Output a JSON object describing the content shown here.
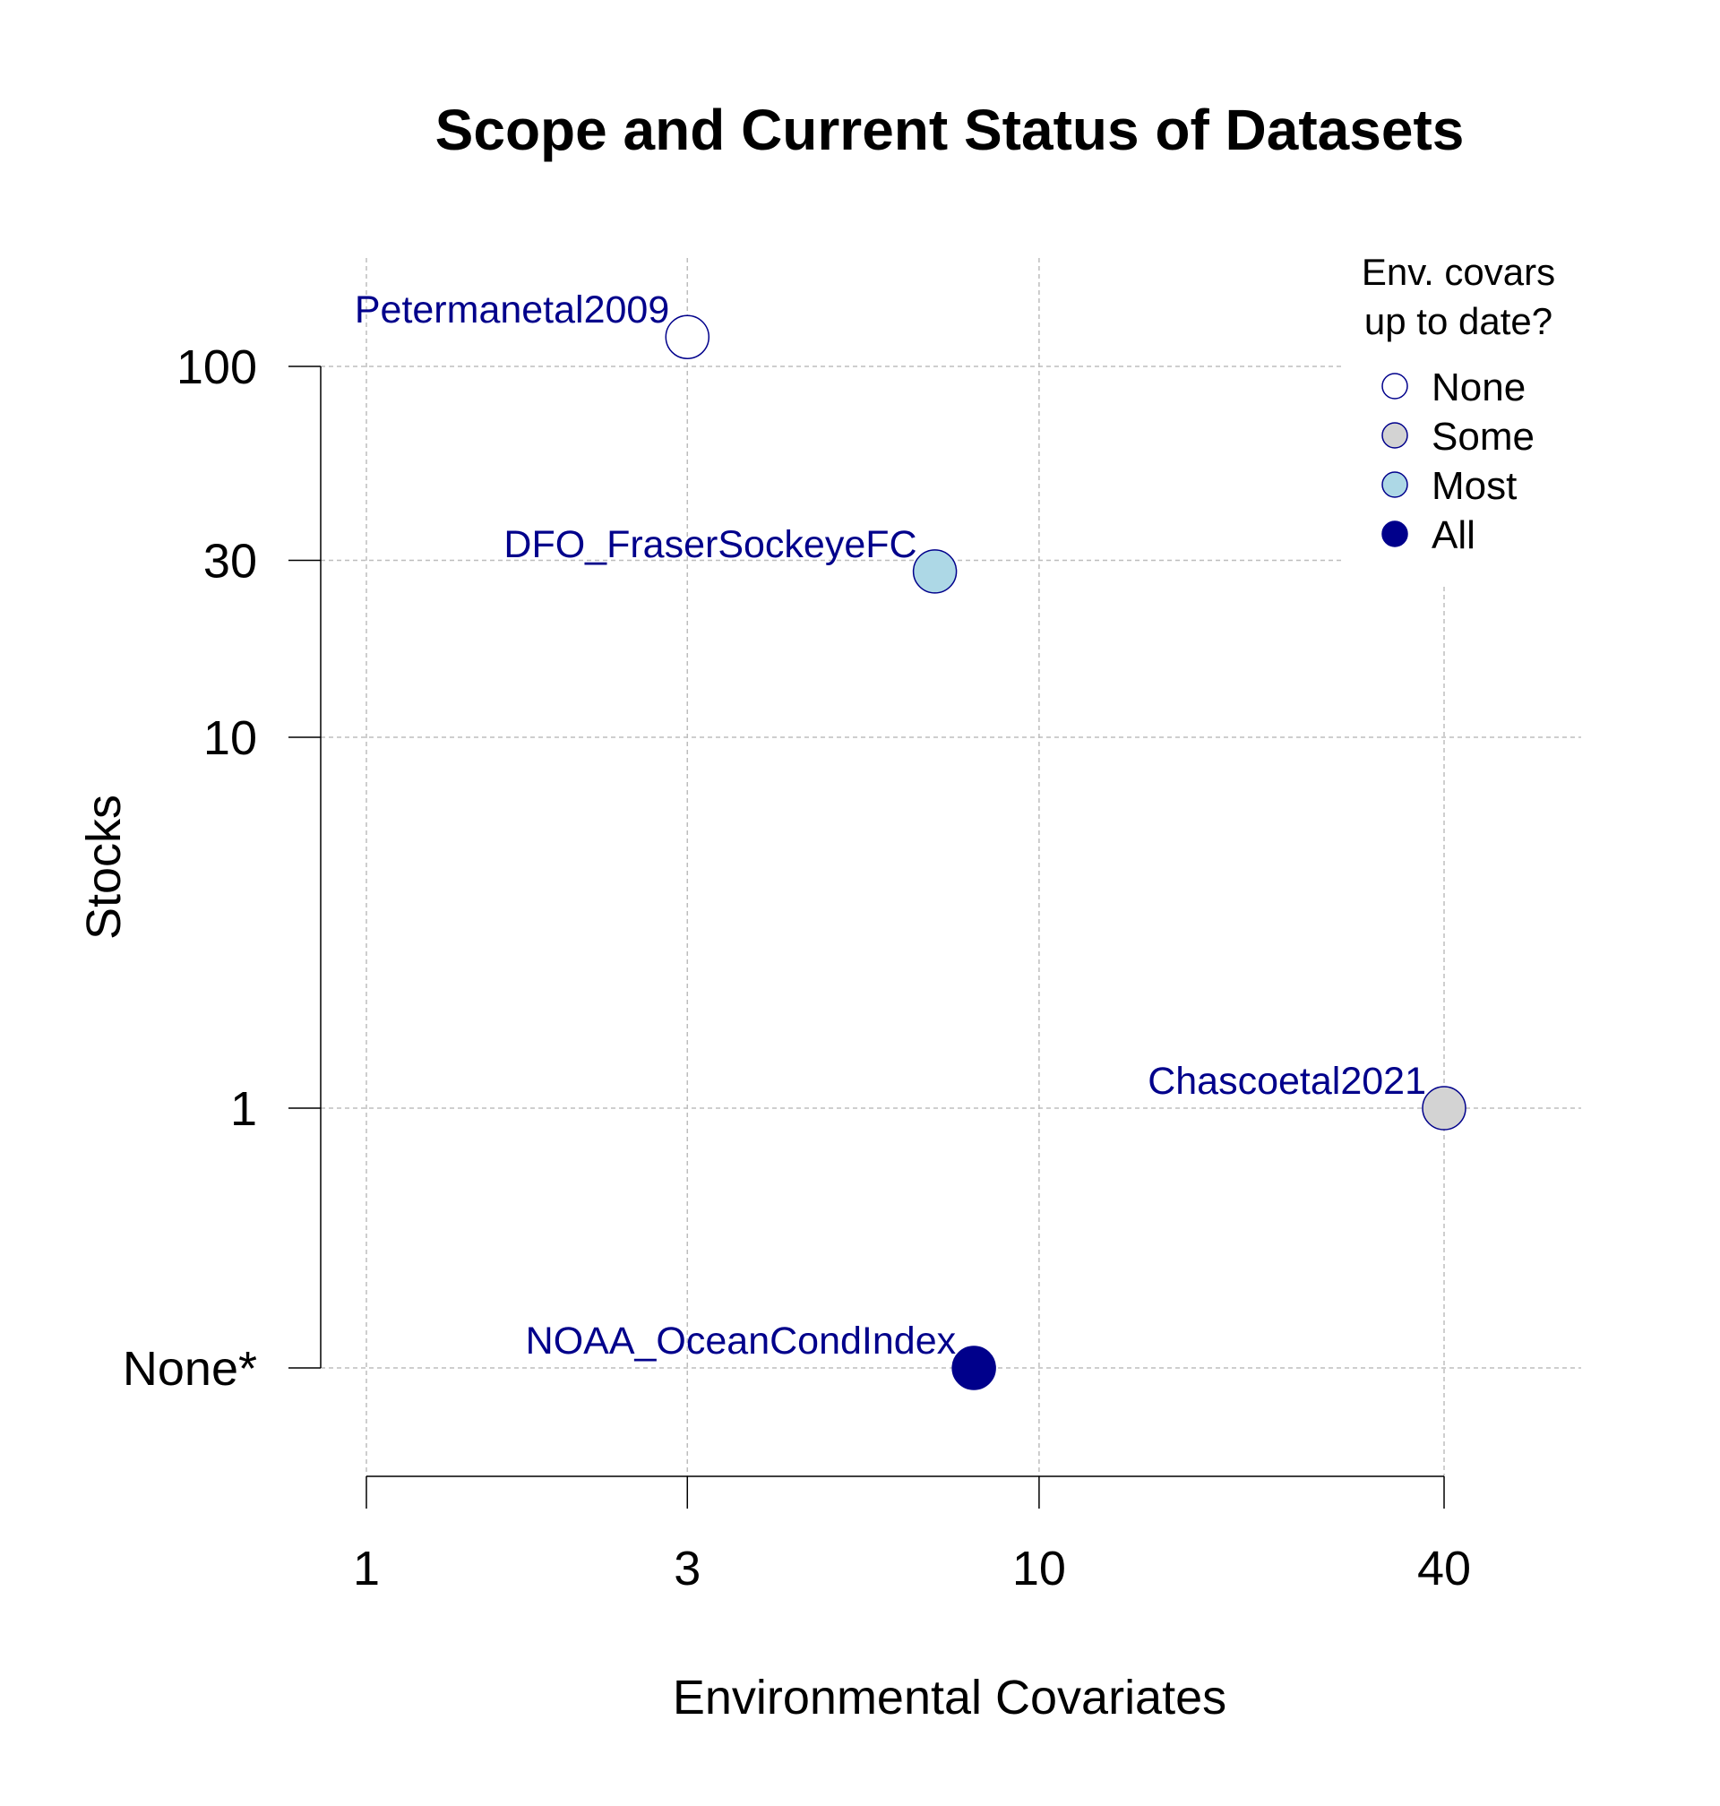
{
  "chart_data": {
    "type": "scatter",
    "title": "Scope and Current Status of Datasets",
    "xlabel": "Environmental Covariates",
    "ylabel": "Stocks",
    "x_scale": "log",
    "y_scale": "log",
    "xlim": [
      1,
      60
    ],
    "ylim": [
      0.2,
      170
    ],
    "grid": true,
    "x_ticks": [
      {
        "value": 1,
        "label": "1"
      },
      {
        "value": 3,
        "label": "3"
      },
      {
        "value": 10,
        "label": "10"
      },
      {
        "value": 40,
        "label": "40"
      }
    ],
    "y_ticks": [
      {
        "value": 0.2,
        "label": "None*"
      },
      {
        "value": 1,
        "label": "1"
      },
      {
        "value": 10,
        "label": "10"
      },
      {
        "value": 30,
        "label": "30"
      },
      {
        "value": 100,
        "label": "100"
      }
    ],
    "points": [
      {
        "label": "Petermanetal2009",
        "x": 3,
        "y": 120,
        "status": "None"
      },
      {
        "label": "DFO_FraserSockeyeFC",
        "x": 7,
        "y": 28,
        "status": "Most"
      },
      {
        "label": "Chascoetal2021",
        "x": 40,
        "y": 1,
        "status": "Some"
      },
      {
        "label": "NOAA_OceanCondIndex",
        "x": 8,
        "y": 0.2,
        "status": "All"
      }
    ],
    "legend": {
      "title_lines": [
        "Env. covars",
        "up to date?"
      ],
      "position": "top-right",
      "items": [
        {
          "label": "None",
          "fill": "#ffffff"
        },
        {
          "label": "Some",
          "fill": "#d3d3d3"
        },
        {
          "label": "Most",
          "fill": "#add8e6"
        },
        {
          "label": "All",
          "fill": "#00008b"
        }
      ]
    },
    "colors": {
      "marker_outline": "#00008b",
      "point_label": "#00008b",
      "grid": "#bdbdbd"
    }
  }
}
